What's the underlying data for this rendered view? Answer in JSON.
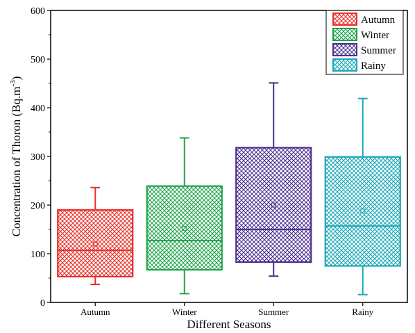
{
  "chart_data": {
    "type": "box",
    "xlabel": "Different Seasons",
    "ylabel": "Concentration of Thoron (Bq.m",
    "ylabel_sup": "-3",
    "ylabel_close": ")",
    "ylim": [
      0,
      600
    ],
    "yticks": [
      "0",
      "100",
      "200",
      "300",
      "400",
      "500",
      "600"
    ],
    "ytick_values": [
      0,
      100,
      200,
      300,
      400,
      500,
      600
    ],
    "grid": false,
    "legend_position": "top-right",
    "categories": [
      "Autumn",
      "Winter",
      "Summer",
      "Rainy"
    ],
    "series": [
      {
        "name": "Autumn",
        "color": "#e8302a",
        "min": 37,
        "q1": 53,
        "median": 107,
        "mean": 120,
        "q3": 190,
        "max": 236
      },
      {
        "name": "Winter",
        "color": "#1fa34a",
        "min": 18,
        "q1": 67,
        "median": 127,
        "mean": 152,
        "q3": 239,
        "max": 338
      },
      {
        "name": "Summer",
        "color": "#4a2f8f",
        "min": 54,
        "q1": 83,
        "median": 150,
        "mean": 200,
        "q3": 318,
        "max": 451
      },
      {
        "name": "Rainy",
        "color": "#1aa9b8",
        "min": 16,
        "q1": 75,
        "median": 157,
        "mean": 188,
        "q3": 299,
        "max": 419
      }
    ]
  }
}
